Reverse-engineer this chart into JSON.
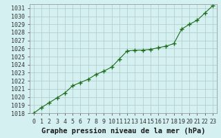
{
  "x": [
    0,
    1,
    2,
    3,
    4,
    5,
    6,
    7,
    8,
    9,
    10,
    11,
    12,
    13,
    14,
    15,
    16,
    17,
    18,
    19,
    20,
    21,
    22,
    23
  ],
  "y": [
    1018.0,
    1018.7,
    1019.3,
    1019.9,
    1020.5,
    1021.4,
    1021.8,
    1022.2,
    1022.8,
    1023.2,
    1023.7,
    1024.7,
    1025.7,
    1025.8,
    1025.8,
    1025.9,
    1026.1,
    1026.3,
    1026.6,
    1028.4,
    1029.0,
    1029.5,
    1030.4,
    1031.3
  ],
  "line_color": "#1a6b1a",
  "marker": "+",
  "marker_color": "#1a6b1a",
  "bg_color": "#d4f0f0",
  "grid_color": "#b0c8c8",
  "title": "Graphe pression niveau de la mer (hPa)",
  "ylim_min": 1018,
  "ylim_max": 1031,
  "xlim_min": 0,
  "xlim_max": 23,
  "ytick_step": 1,
  "xtick_labels": [
    "0",
    "1",
    "2",
    "3",
    "4",
    "5",
    "6",
    "7",
    "8",
    "9",
    "10",
    "11",
    "12",
    "13",
    "14",
    "15",
    "16",
    "17",
    "18",
    "19",
    "20",
    "21",
    "22",
    "23"
  ],
  "title_fontsize": 7.5,
  "tick_fontsize": 6
}
